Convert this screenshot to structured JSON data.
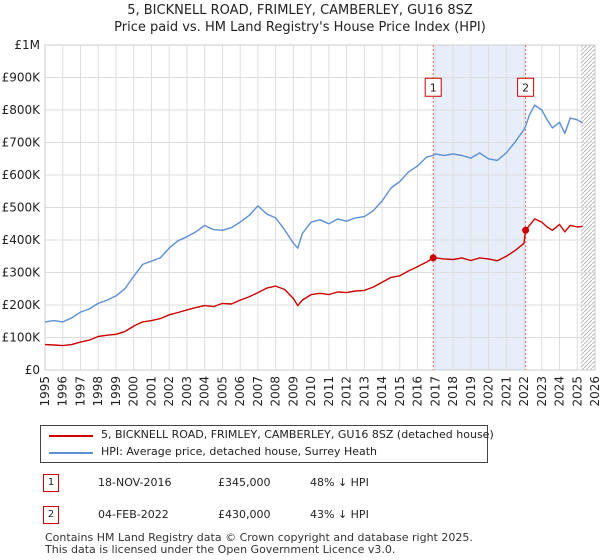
{
  "chart_data": {
    "type": "line",
    "title": "5, BICKNELL ROAD, FRIMLEY, CAMBERLEY, GU16 8SZ",
    "subtitle": "Price paid vs. HM Land Registry's House Price Index (HPI)",
    "xlabel": "",
    "ylabel": "",
    "xlim": [
      1995,
      2026
    ],
    "ylim": [
      0,
      1000000
    ],
    "x_ticks": [
      "1995",
      "1996",
      "1997",
      "1998",
      "1999",
      "2000",
      "2001",
      "2002",
      "2003",
      "2004",
      "2005",
      "2006",
      "2007",
      "2008",
      "2009",
      "2010",
      "2011",
      "2012",
      "2013",
      "2014",
      "2015",
      "2016",
      "2017",
      "2018",
      "2019",
      "2020",
      "2021",
      "2022",
      "2023",
      "2024",
      "2025",
      "2026"
    ],
    "y_ticks": [
      {
        "value": 0,
        "label": "£0"
      },
      {
        "value": 100000,
        "label": "£100K"
      },
      {
        "value": 200000,
        "label": "£200K"
      },
      {
        "value": 300000,
        "label": "£300K"
      },
      {
        "value": 400000,
        "label": "£400K"
      },
      {
        "value": 500000,
        "label": "£500K"
      },
      {
        "value": 600000,
        "label": "£600K"
      },
      {
        "value": 700000,
        "label": "£700K"
      },
      {
        "value": 800000,
        "label": "£800K"
      },
      {
        "value": 900000,
        "label": "£900K"
      },
      {
        "value": 1000000,
        "label": "£1M"
      }
    ],
    "grid": true,
    "series": [
      {
        "name": "5, BICKNELL ROAD, FRIMLEY, CAMBERLEY, GU16 8SZ (detached house)",
        "color": "#cc0000",
        "x": [
          1995.0,
          1995.5,
          1996.0,
          1996.5,
          1997.0,
          1997.5,
          1998.0,
          1998.5,
          1999.0,
          1999.5,
          2000.0,
          2000.5,
          2001.0,
          2001.5,
          2002.0,
          2002.5,
          2003.0,
          2003.5,
          2004.0,
          2004.5,
          2005.0,
          2005.5,
          2006.0,
          2006.5,
          2007.0,
          2007.5,
          2008.0,
          2008.5,
          2009.0,
          2009.25,
          2009.5,
          2010.0,
          2010.5,
          2011.0,
          2011.5,
          2012.0,
          2012.5,
          2013.0,
          2013.5,
          2014.0,
          2014.5,
          2015.0,
          2015.5,
          2016.0,
          2016.5,
          2016.88,
          2017.0,
          2017.5,
          2018.0,
          2018.5,
          2019.0,
          2019.5,
          2020.0,
          2020.5,
          2021.0,
          2021.5,
          2022.0,
          2022.09,
          2022.3,
          2022.6,
          2023.0,
          2023.3,
          2023.6,
          2024.0,
          2024.3,
          2024.6,
          2025.0,
          2025.3
        ],
        "values": [
          78000,
          77000,
          75000,
          78000,
          86000,
          92000,
          103000,
          107000,
          110000,
          118000,
          135000,
          148000,
          152000,
          158000,
          170000,
          177000,
          185000,
          192000,
          198000,
          195000,
          205000,
          203000,
          215000,
          225000,
          238000,
          252000,
          258000,
          248000,
          220000,
          198000,
          215000,
          232000,
          236000,
          232000,
          240000,
          238000,
          243000,
          245000,
          255000,
          270000,
          285000,
          290000,
          305000,
          318000,
          332000,
          345000,
          345000,
          342000,
          340000,
          345000,
          337000,
          345000,
          342000,
          336000,
          350000,
          368000,
          390000,
          430000,
          445000,
          465000,
          455000,
          440000,
          430000,
          448000,
          425000,
          445000,
          440000,
          442000
        ]
      },
      {
        "name": "HPI: Average price, detached house, Surrey Heath",
        "color": "#5b8fd4",
        "x": [
          1995.0,
          1995.5,
          1996.0,
          1996.5,
          1997.0,
          1997.5,
          1998.0,
          1998.5,
          1999.0,
          1999.5,
          2000.0,
          2000.5,
          2001.0,
          2001.5,
          2002.0,
          2002.5,
          2003.0,
          2003.5,
          2004.0,
          2004.5,
          2005.0,
          2005.5,
          2006.0,
          2006.5,
          2007.0,
          2007.5,
          2008.0,
          2008.5,
          2009.0,
          2009.25,
          2009.5,
          2010.0,
          2010.5,
          2011.0,
          2011.5,
          2012.0,
          2012.5,
          2013.0,
          2013.5,
          2014.0,
          2014.5,
          2015.0,
          2015.5,
          2016.0,
          2016.5,
          2016.88,
          2017.0,
          2017.5,
          2018.0,
          2018.5,
          2019.0,
          2019.5,
          2020.0,
          2020.5,
          2021.0,
          2021.5,
          2022.0,
          2022.09,
          2022.3,
          2022.6,
          2023.0,
          2023.3,
          2023.6,
          2024.0,
          2024.3,
          2024.6,
          2025.0,
          2025.3
        ],
        "values": [
          148000,
          152000,
          148000,
          160000,
          178000,
          188000,
          205000,
          215000,
          228000,
          250000,
          288000,
          325000,
          335000,
          345000,
          375000,
          398000,
          410000,
          425000,
          445000,
          432000,
          430000,
          438000,
          455000,
          475000,
          505000,
          480000,
          468000,
          432000,
          390000,
          375000,
          420000,
          455000,
          462000,
          450000,
          465000,
          458000,
          468000,
          472000,
          490000,
          520000,
          560000,
          580000,
          610000,
          628000,
          655000,
          660000,
          665000,
          660000,
          665000,
          660000,
          652000,
          668000,
          650000,
          645000,
          668000,
          702000,
          740000,
          750000,
          785000,
          815000,
          800000,
          770000,
          745000,
          762000,
          728000,
          775000,
          770000,
          760000
        ]
      }
    ],
    "markers": [
      {
        "label": "1",
        "x": 2016.88,
        "value": 345000,
        "box_value": 870000
      },
      {
        "label": "2",
        "x": 2022.09,
        "value": 430000,
        "box_value": 870000
      }
    ],
    "shaded_range": [
      2016.88,
      2022.09
    ],
    "forecast_start": 2025.2
  },
  "legend": {
    "property_label": "5, BICKNELL ROAD, FRIMLEY, CAMBERLEY, GU16 8SZ (detached house)",
    "hpi_label": "HPI: Average price, detached house, Surrey Heath"
  },
  "transactions": [
    {
      "num": "1",
      "date": "18-NOV-2016",
      "price": "£345,000",
      "hpi": "48% ↓ HPI"
    },
    {
      "num": "2",
      "date": "04-FEB-2022",
      "price": "£430,000",
      "hpi": "43% ↓ HPI"
    }
  ],
  "footer": {
    "line1": "Contains HM Land Registry data © Crown copyright and database right 2025.",
    "line2": "This data is licensed under the Open Government Licence v3.0."
  },
  "colors": {
    "property": "#cc0000",
    "hpi": "#5b8fd4",
    "grid": "#dddddd",
    "shade": "#dde6f7"
  }
}
